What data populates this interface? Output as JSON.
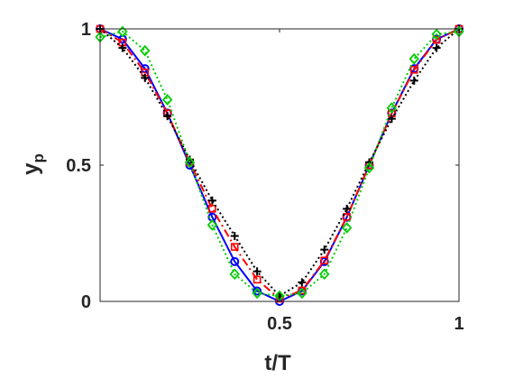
{
  "chart_data": {
    "type": "line",
    "xlabel": "t/T",
    "ylabel": "y",
    "ylabel_subscript": "p",
    "xlim": [
      0.0,
      1.0
    ],
    "ylim": [
      0.0,
      1.0
    ],
    "xticks": [
      0.5,
      1.0
    ],
    "xtick_labels": [
      "0.5",
      "1"
    ],
    "yticks": [
      0.0,
      0.5,
      1.0
    ],
    "ytick_labels": [
      "0",
      "0.5",
      "1"
    ],
    "grid": false,
    "legend": "none",
    "series": [
      {
        "color": "#0000ff",
        "line_style": "solid",
        "marker": "circle",
        "x": [
          0.0,
          0.0625,
          0.125,
          0.1875,
          0.25,
          0.3125,
          0.375,
          0.4375,
          0.5,
          0.5625,
          0.625,
          0.6875,
          0.75,
          0.8125,
          0.875,
          0.9375,
          1.0
        ],
        "y": [
          1.0,
          0.962,
          0.854,
          0.691,
          0.5,
          0.309,
          0.146,
          0.038,
          0.0,
          0.038,
          0.146,
          0.309,
          0.5,
          0.691,
          0.854,
          0.962,
          1.0
        ]
      },
      {
        "color": "#ff0000",
        "line_style": "dashdot",
        "marker": "square",
        "x": [
          0.0,
          0.0625,
          0.125,
          0.1875,
          0.25,
          0.3125,
          0.375,
          0.4375,
          0.5,
          0.5625,
          0.625,
          0.6875,
          0.75,
          0.8125,
          0.875,
          0.9375,
          1.0
        ],
        "y": [
          1.0,
          0.95,
          0.84,
          0.69,
          0.51,
          0.34,
          0.2,
          0.08,
          0.01,
          0.04,
          0.15,
          0.31,
          0.5,
          0.69,
          0.85,
          0.96,
          1.0
        ]
      },
      {
        "color": "#000000",
        "line_style": "dotted",
        "marker": "plus",
        "x": [
          0.0,
          0.0625,
          0.125,
          0.1875,
          0.25,
          0.3125,
          0.375,
          0.4375,
          0.5,
          0.5625,
          0.625,
          0.6875,
          0.75,
          0.8125,
          0.875,
          0.9375,
          1.0
        ],
        "y": [
          1.0,
          0.93,
          0.82,
          0.68,
          0.52,
          0.37,
          0.24,
          0.11,
          0.02,
          0.07,
          0.19,
          0.34,
          0.51,
          0.67,
          0.81,
          0.93,
          1.0
        ]
      },
      {
        "color": "#00cc00",
        "line_style": "dotted",
        "marker": "diamond",
        "x": [
          0.0,
          0.0625,
          0.125,
          0.1875,
          0.25,
          0.3125,
          0.375,
          0.4375,
          0.5,
          0.5625,
          0.625,
          0.6875,
          0.75,
          0.8125,
          0.875,
          0.9375,
          1.0
        ],
        "y": [
          0.97,
          0.99,
          0.92,
          0.74,
          0.51,
          0.28,
          0.1,
          0.03,
          0.02,
          0.03,
          0.1,
          0.27,
          0.49,
          0.71,
          0.89,
          0.98,
          0.99
        ]
      }
    ]
  }
}
